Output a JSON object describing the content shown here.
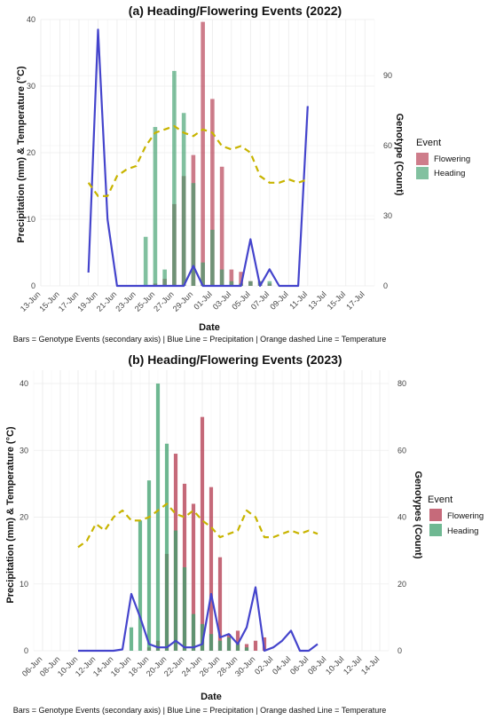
{
  "colors": {
    "flowering": "#b3384d",
    "heading": "#3fa06d",
    "precipitation": "#4444cc",
    "temperature": "#c8b400",
    "grid": "#ebebeb"
  },
  "chart_data": [
    {
      "type": "bar",
      "title": "(a) Heading/Flowering Events (2022)",
      "xlabel": "Date",
      "ylabel_left": "Precipitation (mm) & Temperature (°C)",
      "ylabel_right": "Genotype (Count)",
      "caption": "Bars = Genotype Events (secondary axis) | Blue Line = Precipitation | Orange dashed Line = Temperature",
      "legend_title": "Event",
      "legend_position": "right",
      "grid": true,
      "x_start": "13-Jun",
      "x_end": "18-Jul",
      "x_ticks": [
        "13-Jun",
        "15-Jun",
        "17-Jun",
        "19-Jun",
        "21-Jun",
        "23-Jun",
        "25-Jun",
        "27-Jun",
        "29-Jun",
        "01-Jul",
        "03-Jul",
        "05-Jul",
        "07-Jul",
        "09-Jul",
        "11-Jul",
        "13-Jul",
        "15-Jul",
        "17-Jul"
      ],
      "y_left_ticks": [
        0,
        10,
        20,
        30,
        40
      ],
      "y_left_lim": [
        0,
        40
      ],
      "y_right_ticks": [
        0,
        30,
        60,
        90
      ],
      "y_right_lim": [
        0,
        114
      ],
      "series": [
        {
          "name": "Flowering",
          "kind": "bar",
          "axis": "right",
          "points": [
            [
              "25-Jun",
              1
            ],
            [
              "26-Jun",
              3
            ],
            [
              "27-Jun",
              35
            ],
            [
              "28-Jun",
              47
            ],
            [
              "29-Jun",
              56
            ],
            [
              "30-Jun",
              113
            ],
            [
              "01-Jul",
              80
            ],
            [
              "02-Jul",
              51
            ],
            [
              "03-Jul",
              7
            ],
            [
              "04-Jul",
              6
            ],
            [
              "05-Jul",
              2
            ],
            [
              "06-Jul",
              2
            ],
            [
              "07-Jul",
              1
            ]
          ]
        },
        {
          "name": "Heading",
          "kind": "bar",
          "axis": "right",
          "points": [
            [
              "24-Jun",
              21
            ],
            [
              "25-Jun",
              68
            ],
            [
              "26-Jun",
              7
            ],
            [
              "27-Jun",
              92
            ],
            [
              "28-Jun",
              74
            ],
            [
              "29-Jun",
              44
            ],
            [
              "30-Jun",
              10
            ],
            [
              "01-Jul",
              24
            ],
            [
              "02-Jul",
              7
            ],
            [
              "03-Jul",
              2
            ],
            [
              "04-Jul",
              1
            ],
            [
              "05-Jul",
              2
            ],
            [
              "06-Jul",
              2
            ],
            [
              "07-Jul",
              2
            ]
          ]
        },
        {
          "name": "Precipitation",
          "kind": "line",
          "axis": "left",
          "points": [
            [
              "18-Jun",
              2
            ],
            [
              "19-Jun",
              38.5
            ],
            [
              "20-Jun",
              10
            ],
            [
              "21-Jun",
              0
            ],
            [
              "22-Jun",
              0
            ],
            [
              "23-Jun",
              0
            ],
            [
              "24-Jun",
              0
            ],
            [
              "25-Jun",
              0
            ],
            [
              "26-Jun",
              0
            ],
            [
              "27-Jun",
              0
            ],
            [
              "28-Jun",
              0
            ],
            [
              "29-Jun",
              3
            ],
            [
              "30-Jun",
              0
            ],
            [
              "01-Jul",
              0
            ],
            [
              "02-Jul",
              0
            ],
            [
              "03-Jul",
              0
            ],
            [
              "04-Jul",
              0
            ],
            [
              "05-Jul",
              7
            ],
            [
              "06-Jul",
              0
            ],
            [
              "07-Jul",
              2.5
            ],
            [
              "08-Jul",
              0
            ],
            [
              "09-Jul",
              0
            ],
            [
              "10-Jul",
              0
            ],
            [
              "11-Jul",
              27
            ]
          ]
        },
        {
          "name": "Temperature",
          "kind": "line",
          "axis": "left",
          "points": [
            [
              "18-Jun",
              15.5
            ],
            [
              "19-Jun",
              13.5
            ],
            [
              "20-Jun",
              13.5
            ],
            [
              "21-Jun",
              16.5
            ],
            [
              "22-Jun",
              17.5
            ],
            [
              "23-Jun",
              18
            ],
            [
              "24-Jun",
              21
            ],
            [
              "25-Jun",
              23
            ],
            [
              "26-Jun",
              23.5
            ],
            [
              "27-Jun",
              24
            ],
            [
              "28-Jun",
              23
            ],
            [
              "29-Jun",
              22.5
            ],
            [
              "30-Jun",
              23.5
            ],
            [
              "01-Jul",
              23
            ],
            [
              "02-Jul",
              21
            ],
            [
              "03-Jul",
              20.5
            ],
            [
              "04-Jul",
              21
            ],
            [
              "05-Jul",
              20
            ],
            [
              "06-Jul",
              16.5
            ],
            [
              "07-Jul",
              15.5
            ],
            [
              "08-Jul",
              15.5
            ],
            [
              "09-Jul",
              16
            ],
            [
              "10-Jul",
              15.5
            ],
            [
              "11-Jul",
              16
            ]
          ]
        }
      ]
    },
    {
      "type": "bar",
      "title": "(b) Heading/Flowering Events (2023)",
      "xlabel": "Date",
      "ylabel_left": "Precipitation (mm) & Temperature (°C)",
      "ylabel_right": "Genotypes (Count)",
      "caption": "Bars = Genotype Events (secondary axis) | Blue Line = Precipitation | Orange dashed Line = Temperature",
      "legend_title": "Event",
      "legend_position": "right",
      "grid": true,
      "x_start": "05-Jun",
      "x_end": "15-Jul",
      "x_ticks": [
        "06-Jun",
        "08-Jun",
        "10-Jun",
        "12-Jun",
        "14-Jun",
        "16-Jun",
        "18-Jun",
        "20-Jun",
        "22-Jun",
        "24-Jun",
        "26-Jun",
        "28-Jun",
        "30-Jun",
        "02-Jul",
        "04-Jul",
        "06-Jul",
        "08-Jul",
        "10-Jul",
        "12-Jul",
        "14-Jul"
      ],
      "y_left_ticks": [
        0,
        10,
        20,
        30,
        40
      ],
      "y_left_lim": [
        0,
        42
      ],
      "y_right_ticks": [
        0,
        20,
        40,
        60,
        80
      ],
      "y_right_lim": [
        0,
        84
      ],
      "series": [
        {
          "name": "Flowering",
          "kind": "bar",
          "axis": "right",
          "points": [
            [
              "18-Jun",
              1
            ],
            [
              "19-Jun",
              3
            ],
            [
              "20-Jun",
              29
            ],
            [
              "21-Jun",
              59
            ],
            [
              "22-Jun",
              50
            ],
            [
              "23-Jun",
              44
            ],
            [
              "24-Jun",
              70
            ],
            [
              "25-Jun",
              49
            ],
            [
              "26-Jun",
              28
            ],
            [
              "27-Jun",
              5
            ],
            [
              "28-Jun",
              6
            ],
            [
              "29-Jun",
              2
            ],
            [
              "30-Jun",
              3
            ],
            [
              "01-Jul",
              4
            ]
          ]
        },
        {
          "name": "Heading",
          "kind": "bar",
          "axis": "right",
          "points": [
            [
              "16-Jun",
              7
            ],
            [
              "17-Jun",
              39
            ],
            [
              "18-Jun",
              51
            ],
            [
              "19-Jun",
              80
            ],
            [
              "20-Jun",
              62
            ],
            [
              "21-Jun",
              36
            ],
            [
              "22-Jun",
              25
            ],
            [
              "23-Jun",
              11
            ],
            [
              "24-Jun",
              8
            ],
            [
              "25-Jun",
              5
            ],
            [
              "26-Jun",
              3
            ],
            [
              "27-Jun",
              4
            ],
            [
              "28-Jun",
              2
            ],
            [
              "29-Jun",
              1
            ]
          ]
        },
        {
          "name": "Precipitation",
          "kind": "line",
          "axis": "left",
          "points": [
            [
              "10-Jun",
              0
            ],
            [
              "11-Jun",
              0
            ],
            [
              "12-Jun",
              0
            ],
            [
              "13-Jun",
              0
            ],
            [
              "14-Jun",
              0
            ],
            [
              "15-Jun",
              0.2
            ],
            [
              "16-Jun",
              8.5
            ],
            [
              "17-Jun",
              5
            ],
            [
              "18-Jun",
              1
            ],
            [
              "19-Jun",
              0.5
            ],
            [
              "20-Jun",
              0.5
            ],
            [
              "21-Jun",
              1.5
            ],
            [
              "22-Jun",
              0.5
            ],
            [
              "23-Jun",
              0.5
            ],
            [
              "24-Jun",
              1
            ],
            [
              "25-Jun",
              8.5
            ],
            [
              "26-Jun",
              2
            ],
            [
              "27-Jun",
              2.5
            ],
            [
              "28-Jun",
              1
            ],
            [
              "29-Jun",
              3.5
            ],
            [
              "30-Jun",
              9.5
            ],
            [
              "01-Jul",
              0
            ],
            [
              "02-Jul",
              0.5
            ],
            [
              "03-Jul",
              1.5
            ],
            [
              "04-Jul",
              3
            ],
            [
              "05-Jul",
              0
            ],
            [
              "06-Jul",
              0
            ],
            [
              "07-Jul",
              1
            ]
          ]
        },
        {
          "name": "Temperature",
          "kind": "line",
          "axis": "left",
          "points": [
            [
              "10-Jun",
              15.5
            ],
            [
              "11-Jun",
              16.5
            ],
            [
              "12-Jun",
              19
            ],
            [
              "13-Jun",
              18
            ],
            [
              "14-Jun",
              20
            ],
            [
              "15-Jun",
              21
            ],
            [
              "16-Jun",
              19.5
            ],
            [
              "17-Jun",
              19.5
            ],
            [
              "18-Jun",
              20
            ],
            [
              "19-Jun",
              21
            ],
            [
              "20-Jun",
              22
            ],
            [
              "21-Jun",
              20.5
            ],
            [
              "22-Jun",
              20
            ],
            [
              "23-Jun",
              21
            ],
            [
              "24-Jun",
              19.5
            ],
            [
              "25-Jun",
              18.5
            ],
            [
              "26-Jun",
              17
            ],
            [
              "27-Jun",
              17.5
            ],
            [
              "28-Jun",
              18
            ],
            [
              "29-Jun",
              21
            ],
            [
              "30-Jun",
              20
            ],
            [
              "01-Jul",
              17
            ],
            [
              "02-Jul",
              17
            ],
            [
              "03-Jul",
              17.5
            ],
            [
              "04-Jul",
              18
            ],
            [
              "05-Jul",
              17.5
            ],
            [
              "06-Jul",
              18
            ],
            [
              "07-Jul",
              17.5
            ]
          ]
        }
      ]
    }
  ]
}
